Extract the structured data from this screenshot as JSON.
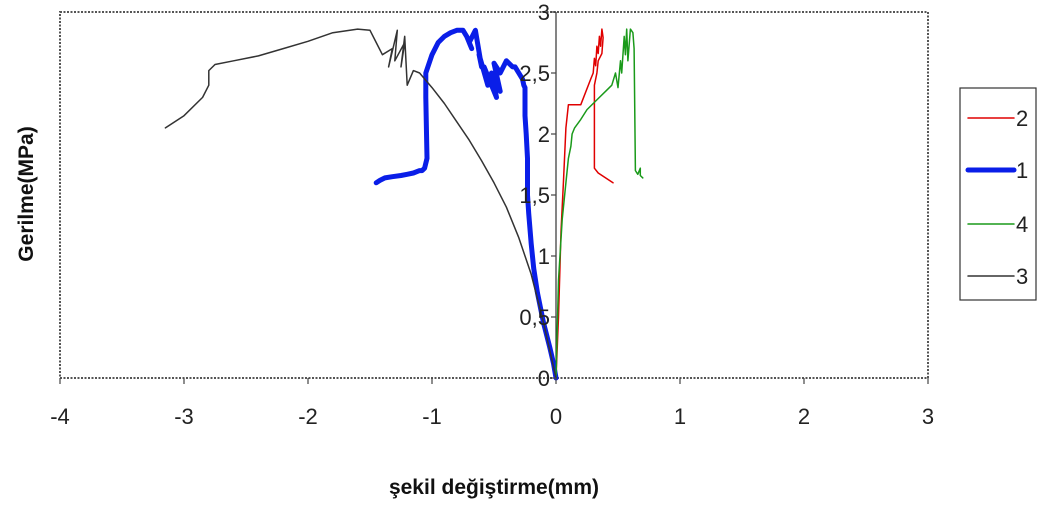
{
  "chart_data": {
    "type": "line",
    "title": "",
    "xlabel": "şekil değiştirme(mm)",
    "ylabel": "Gerilme(MPa)",
    "xlim": [
      -4,
      3
    ],
    "ylim": [
      0,
      3
    ],
    "x_ticks": [
      -4,
      -3,
      -2,
      -1,
      0,
      1,
      2,
      3
    ],
    "x_tick_labels": [
      "-4",
      "-3",
      "-2",
      "-1",
      "0",
      "1",
      "2",
      "3"
    ],
    "y_ticks": [
      0,
      0.5,
      1,
      1.5,
      2,
      2.5,
      3
    ],
    "y_tick_labels": [
      "0",
      "0,5",
      "1",
      "1,5",
      "2",
      "2,5",
      "3"
    ],
    "grid": false,
    "legend_position": "right",
    "series": [
      {
        "name": "2",
        "color": "#e00000",
        "line_width": 1.5,
        "x": [
          0.0,
          0.02,
          0.04,
          0.06,
          0.08,
          0.1,
          0.2,
          0.28,
          0.3,
          0.31,
          0.32,
          0.33,
          0.34,
          0.35,
          0.36,
          0.37,
          0.38,
          0.37,
          0.34,
          0.33,
          0.31,
          0.31,
          0.34,
          0.4,
          0.46
        ],
        "y": [
          0.0,
          0.5,
          1.2,
          1.6,
          2.05,
          2.24,
          2.24,
          2.45,
          2.5,
          2.62,
          2.56,
          2.72,
          2.66,
          2.8,
          2.72,
          2.86,
          2.79,
          2.66,
          2.6,
          2.5,
          2.4,
          1.72,
          1.68,
          1.64,
          1.6
        ]
      },
      {
        "name": "1",
        "color": "#0a1ee8",
        "line_width": 5,
        "x": [
          0.0,
          -0.02,
          -0.05,
          -0.1,
          -0.15,
          -0.18,
          -0.2,
          -0.22,
          -0.23,
          -0.23,
          -0.24,
          -0.25,
          -0.25,
          -0.25,
          -0.26,
          -0.27,
          -0.3,
          -0.33,
          -0.35,
          -0.4,
          -0.45,
          -0.5,
          -0.45,
          -0.52,
          -0.48,
          -0.58,
          -0.55,
          -0.62,
          -0.6,
          -0.65,
          -0.7,
          -0.68,
          -0.72,
          -0.75,
          -0.8,
          -0.85,
          -0.9,
          -0.95,
          -1.0,
          -1.05,
          -1.05,
          -1.04,
          -1.06,
          -1.08,
          -1.1,
          -1.15,
          -1.2,
          -1.25,
          -1.32,
          -1.38,
          -1.42,
          -1.45
        ],
        "y": [
          0.0,
          0.12,
          0.25,
          0.45,
          0.7,
          0.9,
          1.1,
          1.35,
          1.5,
          1.8,
          2.0,
          2.15,
          2.3,
          2.38,
          2.4,
          2.45,
          2.5,
          2.55,
          2.55,
          2.6,
          2.5,
          2.58,
          2.35,
          2.5,
          2.3,
          2.55,
          2.4,
          2.65,
          2.55,
          2.85,
          2.75,
          2.7,
          2.8,
          2.85,
          2.85,
          2.83,
          2.8,
          2.75,
          2.65,
          2.5,
          2.3,
          1.8,
          1.72,
          1.7,
          1.7,
          1.68,
          1.67,
          1.66,
          1.65,
          1.64,
          1.62,
          1.6
        ]
      },
      {
        "name": "4",
        "color": "#1a9a1a",
        "line_width": 1.5,
        "x": [
          0.0,
          0.02,
          0.05,
          0.08,
          0.1,
          0.12,
          0.13,
          0.15,
          0.2,
          0.25,
          0.3,
          0.35,
          0.4,
          0.45,
          0.48,
          0.5,
          0.52,
          0.53,
          0.55,
          0.56,
          0.57,
          0.58,
          0.6,
          0.62,
          0.63,
          0.64,
          0.66,
          0.68,
          0.68,
          0.7
        ],
        "y": [
          0.0,
          0.8,
          1.3,
          1.6,
          1.8,
          1.9,
          2.0,
          2.05,
          2.12,
          2.2,
          2.25,
          2.3,
          2.35,
          2.4,
          2.5,
          2.38,
          2.6,
          2.5,
          2.8,
          2.65,
          2.86,
          2.6,
          2.86,
          2.83,
          2.7,
          1.7,
          1.67,
          1.72,
          1.66,
          1.64
        ]
      },
      {
        "name": "3",
        "color": "#333333",
        "line_width": 1.5,
        "x": [
          0.0,
          -0.1,
          -0.2,
          -0.3,
          -0.4,
          -0.5,
          -0.6,
          -0.7,
          -0.8,
          -0.9,
          -1.0,
          -1.1,
          -1.15,
          -1.2,
          -1.22,
          -1.25,
          -1.22,
          -1.3,
          -1.28,
          -1.35,
          -1.32,
          -1.4,
          -1.45,
          -1.5,
          -1.6,
          -1.8,
          -2.0,
          -2.2,
          -2.4,
          -2.6,
          -2.75,
          -2.8,
          -2.8,
          -2.85,
          -3.0,
          -3.15
        ],
        "y": [
          0.0,
          0.45,
          0.85,
          1.15,
          1.4,
          1.6,
          1.78,
          1.95,
          2.1,
          2.25,
          2.38,
          2.5,
          2.52,
          2.4,
          2.8,
          2.55,
          2.75,
          2.6,
          2.85,
          2.55,
          2.7,
          2.65,
          2.75,
          2.85,
          2.86,
          2.83,
          2.76,
          2.7,
          2.64,
          2.6,
          2.57,
          2.52,
          2.4,
          2.3,
          2.15,
          2.05
        ]
      }
    ]
  }
}
